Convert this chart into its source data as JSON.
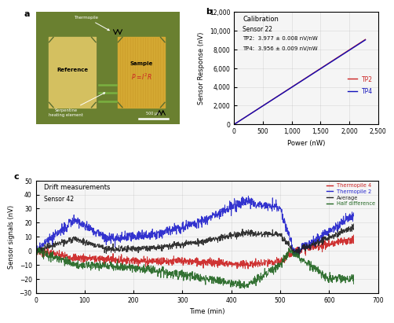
{
  "panel_b": {
    "title": "Calibration",
    "subtitle": "Sensor 22",
    "tp2_label": "TP2:  3.977 ± 0.008 nV/nW",
    "tp4_label": "TP4:  3.956 ± 0.009 nV/nW",
    "slope_tp2": 3.977,
    "slope_tp4": 3.956,
    "xmax": 2280,
    "xlim": [
      0,
      2500
    ],
    "ylim": [
      0,
      12000
    ],
    "xlabel": "Power (nW)",
    "ylabel": "Sensor Response (nV)",
    "xticks": [
      0,
      500,
      1000,
      1500,
      2000,
      2500
    ],
    "yticks": [
      0,
      2000,
      4000,
      6000,
      8000,
      10000,
      12000
    ],
    "tp2_color": "#cc2222",
    "tp4_color": "#1111bb",
    "legend_tp2": "TP2",
    "legend_tp4": "TP4",
    "bg_color": "#f5f5f5"
  },
  "panel_c": {
    "title": "Drift measurements",
    "subtitle": "Sensor 42",
    "xlabel": "Time (min)",
    "ylabel": "Sensor signals (nV)",
    "xlim": [
      0,
      700
    ],
    "ylim": [
      -30,
      50
    ],
    "xticks": [
      0,
      100,
      200,
      300,
      400,
      500,
      600,
      700
    ],
    "yticks": [
      -30,
      -20,
      -10,
      0,
      10,
      20,
      30,
      40,
      50
    ],
    "tp4_color": "#cc2222",
    "tp2_color": "#2222cc",
    "avg_color": "#222222",
    "half_diff_color": "#226622",
    "legend_tp4": "Thermopile 4",
    "legend_tp2": "Thermopile 2",
    "legend_avg": "Average",
    "legend_half": "Half difference",
    "bg_color": "#f5f5f5"
  },
  "panel_a": {
    "bg_color": "#5a6e30",
    "ref_color": "#d4c060",
    "sample_color": "#d4a832",
    "connector_color": "#6a8030",
    "equation_color": "#cc2222",
    "scale_bar": "500 μm"
  }
}
